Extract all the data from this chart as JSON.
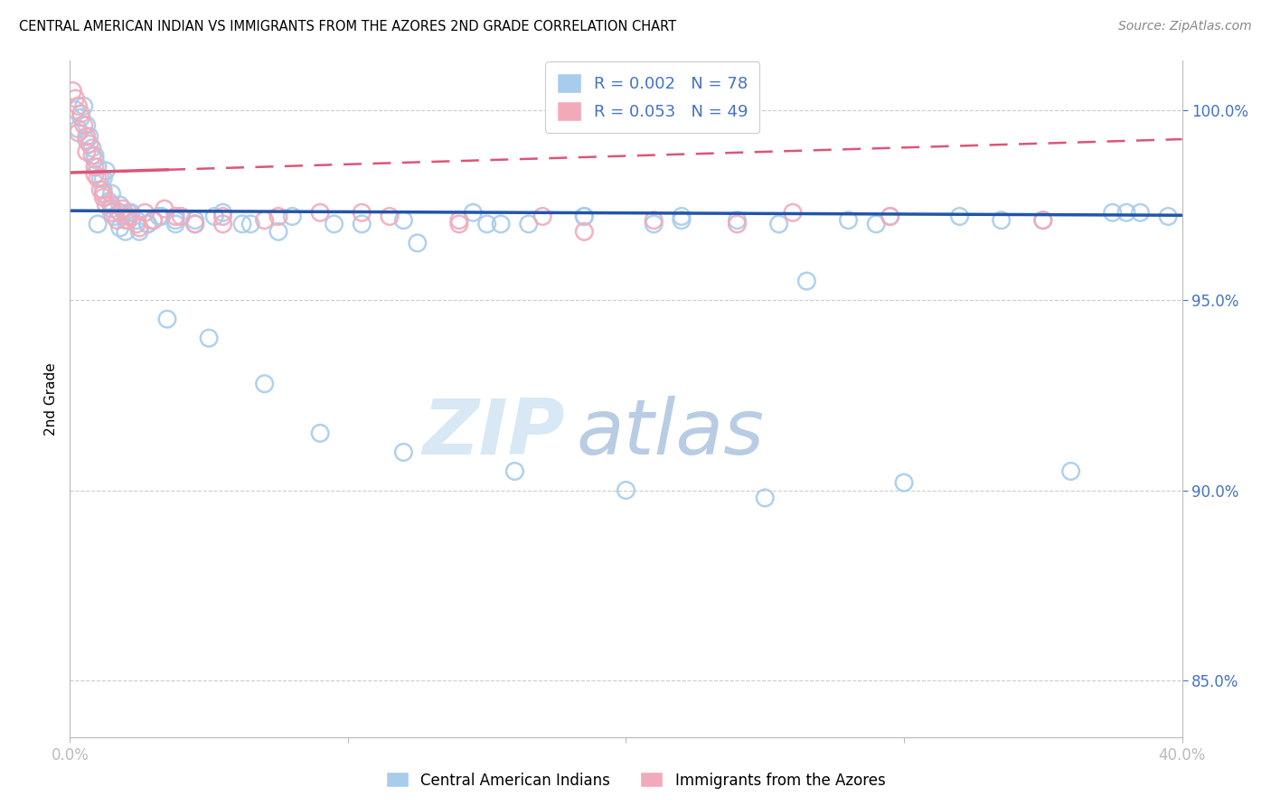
{
  "title": "CENTRAL AMERICAN INDIAN VS IMMIGRANTS FROM THE AZORES 2ND GRADE CORRELATION CHART",
  "source": "Source: ZipAtlas.com",
  "ylabel": "2nd Grade",
  "legend_label1": "Central American Indians",
  "legend_label2": "Immigrants from the Azores",
  "R1": 0.002,
  "N1": 78,
  "R2": 0.053,
  "N2": 49,
  "xmin": 0.0,
  "xmax": 40.0,
  "ymin": 83.5,
  "ymax": 101.3,
  "ytick_vals": [
    85.0,
    90.0,
    95.0,
    100.0
  ],
  "ytick_labels": [
    "85.0%",
    "90.0%",
    "95.0%",
    "100.0%"
  ],
  "xtick_vals": [
    0,
    10,
    20,
    30,
    40
  ],
  "xtick_labels": [
    "0.0%",
    "",
    "",
    "",
    "40.0%"
  ],
  "color_blue": "#A8CCEC",
  "color_pink": "#F2AABB",
  "trendline_blue": "#2255AA",
  "trendline_pink": "#DD5577",
  "watermark_zip_color": "#D8E8F4",
  "watermark_atlas_color": "#B8CCE4",
  "blue_intercept": 97.35,
  "blue_slope": -0.003,
  "pink_intercept": 98.35,
  "pink_slope": 0.022,
  "pink_solid_end": 3.5,
  "blue_scatter_x": [
    0.2,
    0.4,
    0.5,
    0.6,
    0.7,
    0.8,
    0.9,
    1.0,
    1.1,
    1.2,
    1.3,
    1.4,
    1.5,
    1.6,
    1.8,
    2.0,
    2.2,
    2.5,
    2.8,
    3.2,
    3.8,
    4.5,
    5.5,
    6.5,
    8.0,
    10.5,
    12.0,
    14.5,
    16.5,
    18.5,
    21.0,
    24.0,
    26.5,
    29.0,
    32.0,
    35.0,
    38.0,
    39.5,
    0.3,
    0.6,
    0.9,
    1.2,
    1.5,
    1.8,
    2.1,
    2.4,
    2.8,
    3.3,
    3.8,
    4.5,
    5.2,
    6.2,
    7.5,
    9.5,
    12.5,
    15.5,
    18.5,
    22.0,
    25.5,
    29.5,
    33.5,
    37.5,
    1.0,
    2.0,
    3.5,
    5.0,
    7.0,
    9.0,
    12.0,
    16.0,
    20.0,
    25.0,
    30.0,
    36.0,
    15.0,
    22.0,
    28.0,
    38.5
  ],
  "blue_scatter_y": [
    100.0,
    99.8,
    100.1,
    99.6,
    99.3,
    99.0,
    98.7,
    98.5,
    98.2,
    97.9,
    98.4,
    97.6,
    97.4,
    97.2,
    96.9,
    97.1,
    97.3,
    96.8,
    97.0,
    97.2,
    97.0,
    97.1,
    97.3,
    97.0,
    97.2,
    97.0,
    97.1,
    97.3,
    97.0,
    97.2,
    97.0,
    97.1,
    95.5,
    97.0,
    97.2,
    97.1,
    97.3,
    97.2,
    99.5,
    99.2,
    98.8,
    98.2,
    97.8,
    97.5,
    97.3,
    97.1,
    97.0,
    97.2,
    97.1,
    97.0,
    97.2,
    97.0,
    96.8,
    97.0,
    96.5,
    97.0,
    97.2,
    97.1,
    97.0,
    97.2,
    97.1,
    97.3,
    97.0,
    96.8,
    94.5,
    94.0,
    92.8,
    91.5,
    91.0,
    90.5,
    90.0,
    89.8,
    90.2,
    90.5,
    97.0,
    97.2,
    97.1,
    97.3
  ],
  "pink_scatter_x": [
    0.1,
    0.2,
    0.3,
    0.4,
    0.5,
    0.6,
    0.7,
    0.8,
    0.9,
    1.0,
    1.1,
    1.2,
    1.3,
    1.5,
    1.7,
    1.9,
    2.1,
    2.4,
    2.7,
    3.0,
    3.4,
    3.8,
    4.5,
    5.5,
    7.0,
    9.0,
    11.5,
    14.0,
    17.0,
    21.0,
    26.0,
    0.3,
    0.6,
    0.9,
    1.2,
    1.5,
    1.8,
    2.1,
    2.5,
    3.0,
    4.0,
    5.5,
    7.5,
    10.5,
    14.0,
    18.5,
    24.0,
    29.5,
    35.0
  ],
  "pink_scatter_y": [
    100.5,
    100.3,
    100.1,
    99.9,
    99.6,
    99.3,
    99.1,
    98.8,
    98.5,
    98.2,
    97.9,
    97.7,
    97.5,
    97.3,
    97.1,
    97.4,
    97.2,
    97.0,
    97.3,
    97.1,
    97.4,
    97.2,
    97.0,
    97.2,
    97.1,
    97.3,
    97.2,
    97.0,
    97.2,
    97.1,
    97.3,
    99.4,
    98.9,
    98.3,
    97.8,
    97.5,
    97.3,
    97.1,
    96.9,
    97.1,
    97.2,
    97.0,
    97.2,
    97.3,
    97.1,
    96.8,
    97.0,
    97.2,
    97.1
  ]
}
